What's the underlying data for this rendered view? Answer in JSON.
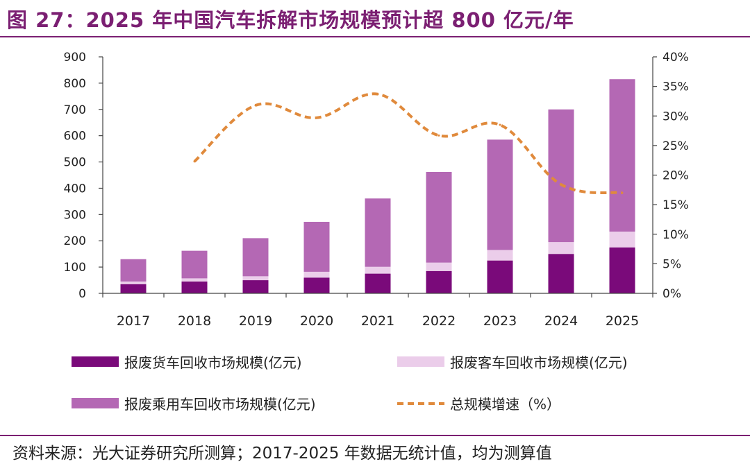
{
  "title": "图 27：2025 年中国汽车拆解市场规模预计超 800 亿元/年",
  "source": "资料来源：光大证券研究所测算；2017-2025 年数据无统计值，均为测算值",
  "chart_data": {
    "type": "bar",
    "stacked": true,
    "categories": [
      "2017",
      "2018",
      "2019",
      "2020",
      "2021",
      "2022",
      "2023",
      "2024",
      "2025"
    ],
    "series": [
      {
        "name": "报废货车回收市场规模(亿元)",
        "type": "bar",
        "axis": "left",
        "color": "#7a0a7a",
        "values": [
          35,
          45,
          50,
          60,
          75,
          85,
          125,
          150,
          175
        ]
      },
      {
        "name": "报废客车回收市场规模(亿元)",
        "type": "bar",
        "axis": "left",
        "color": "#ebcdea",
        "values": [
          10,
          12,
          15,
          22,
          26,
          32,
          40,
          45,
          60
        ]
      },
      {
        "name": "报废乘用车回收市场规模(亿元)",
        "type": "bar",
        "axis": "left",
        "color": "#b468b4",
        "values": [
          85,
          105,
          145,
          190,
          260,
          345,
          420,
          505,
          580
        ]
      },
      {
        "name": "总规模增速（%）",
        "type": "line",
        "axis": "right",
        "style": "dashed",
        "color": "#e08a3c",
        "values": [
          null,
          22.3,
          31.8,
          29.7,
          33.7,
          26.7,
          28.5,
          18.4,
          17.0
        ]
      }
    ],
    "left_axis": {
      "min": 0,
      "max": 900,
      "step": 100,
      "ticks": [
        "0",
        "100",
        "200",
        "300",
        "400",
        "500",
        "600",
        "700",
        "800",
        "900"
      ]
    },
    "right_axis": {
      "min": 0,
      "max": 40,
      "step": 5,
      "ticks": [
        "0%",
        "5%",
        "10%",
        "15%",
        "20%",
        "25%",
        "30%",
        "35%",
        "40%"
      ]
    },
    "grid": false,
    "legend_position": "bottom"
  }
}
